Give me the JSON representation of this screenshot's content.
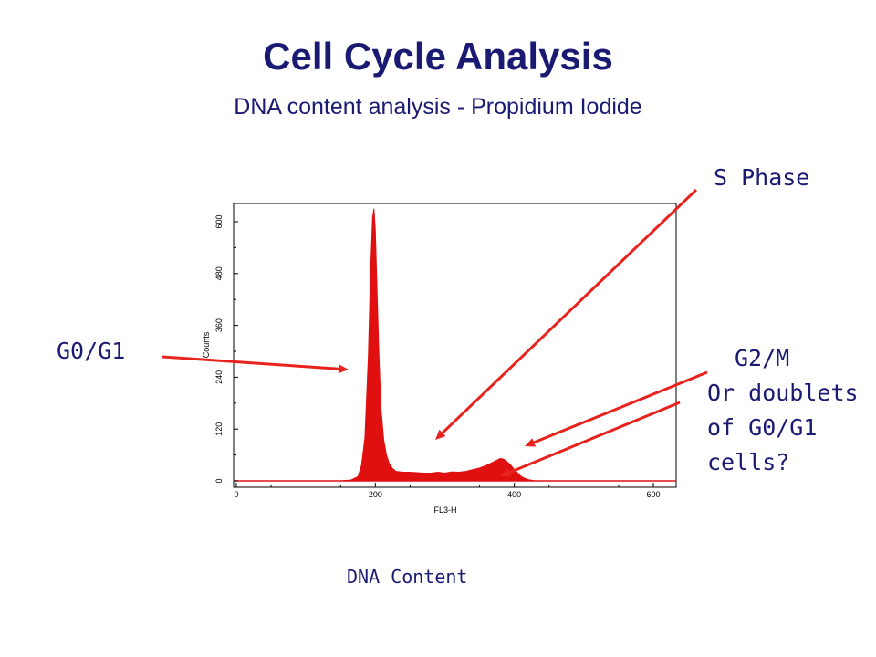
{
  "slide": {
    "title": "Cell Cycle Analysis",
    "subtitle": "DNA content analysis - Propidium Iodide",
    "caption": "DNA Content"
  },
  "annotations": {
    "g0g1": "G0/G1",
    "s_phase": "S Phase",
    "g2m": "G2/M",
    "doublets_line1": "Or doublets",
    "doublets_line2": "of G0/G1",
    "doublets_line3": "cells?"
  },
  "colors": {
    "text": "#1a1a73",
    "histogram": "#e01010",
    "arrow": "#e8231e"
  },
  "chart_data": {
    "type": "area",
    "xlabel": "FL3-H",
    "ylabel": "Counts",
    "xlim": [
      0,
      620
    ],
    "ylim": [
      0,
      630
    ],
    "xticks": [
      0,
      200,
      400,
      600
    ],
    "yticks": [
      0,
      120,
      240,
      360,
      480,
      600
    ],
    "grid": false,
    "x": [
      150,
      165,
      175,
      180,
      185,
      190,
      193,
      196,
      198,
      200,
      202,
      205,
      208,
      212,
      216,
      220,
      225,
      230,
      240,
      250,
      260,
      270,
      280,
      290,
      300,
      310,
      320,
      330,
      340,
      350,
      360,
      370,
      375,
      380,
      385,
      390,
      395,
      400,
      405,
      410,
      415,
      420,
      430
    ],
    "values": [
      0,
      2,
      10,
      35,
      100,
      290,
      480,
      610,
      630,
      580,
      460,
      300,
      170,
      95,
      60,
      40,
      28,
      22,
      20,
      20,
      19,
      18,
      18,
      20,
      18,
      21,
      20,
      22,
      26,
      30,
      36,
      44,
      48,
      52,
      50,
      44,
      36,
      26,
      18,
      10,
      6,
      3,
      0
    ]
  }
}
